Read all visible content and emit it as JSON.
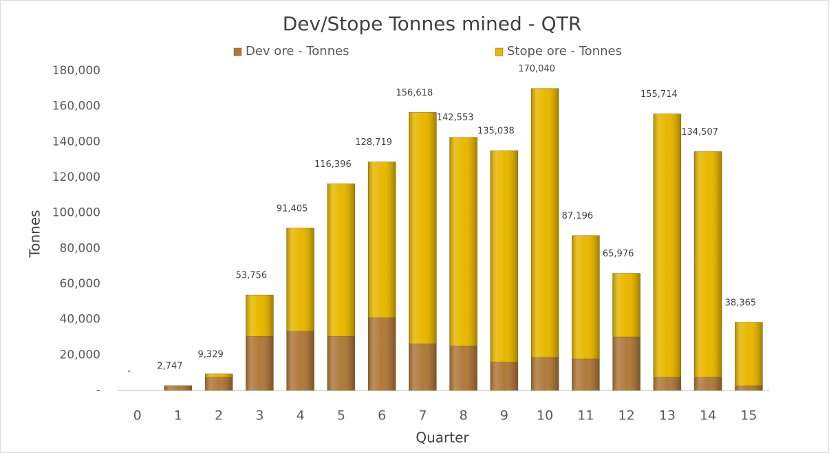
{
  "chart_data": {
    "type": "stacked_bar",
    "title": "Dev/Stope Tonnes mined - QTR",
    "x_label": "Quarter",
    "y_label": "Tonnes",
    "categories": [
      "0",
      "1",
      "2",
      "3",
      "4",
      "5",
      "6",
      "7",
      "8",
      "9",
      "10",
      "11",
      "12",
      "13",
      "14",
      "15"
    ],
    "series": [
      {
        "name": "Dev ore - Tonnes",
        "color": "#b07a3c",
        "values": [
          0,
          2747,
          7500,
          30500,
          33300,
          30500,
          41000,
          26300,
          25100,
          15900,
          18600,
          17800,
          30200,
          7400,
          7400,
          2700
        ]
      },
      {
        "name": "Stope ore - Tonnes",
        "color": "#e8b800",
        "values": [
          0,
          0,
          1829,
          23256,
          58105,
          85896,
          87719,
          130318,
          117453,
          119138,
          151440,
          69396,
          35776,
          148314,
          127107,
          35665
        ]
      }
    ],
    "totals": [
      0,
      2747,
      9329,
      53756,
      91405,
      116396,
      128719,
      156618,
      142553,
      135038,
      170040,
      87196,
      65976,
      155714,
      134507,
      38365
    ],
    "total_labels": [
      "-",
      "2,747",
      "9,329",
      "53,756",
      "91,405",
      "116,396",
      "128,719",
      "156,618",
      "142,553",
      "135,038",
      "170,040",
      "87,196",
      "65,976",
      "155,714",
      "134,507",
      "38,365"
    ],
    "ylim": [
      0,
      180000
    ],
    "yticks": [
      {
        "value": 0,
        "label": "-"
      },
      {
        "value": 20000,
        "label": "20,000"
      },
      {
        "value": 40000,
        "label": "40,000"
      },
      {
        "value": 60000,
        "label": "60,000"
      },
      {
        "value": 80000,
        "label": "80,000"
      },
      {
        "value": 100000,
        "label": "100,000"
      },
      {
        "value": 120000,
        "label": "120,000"
      },
      {
        "value": 140000,
        "label": "140,000"
      },
      {
        "value": 160000,
        "label": "160,000"
      },
      {
        "value": 180000,
        "label": "180,000"
      }
    ],
    "grid": false,
    "legend": "top"
  }
}
